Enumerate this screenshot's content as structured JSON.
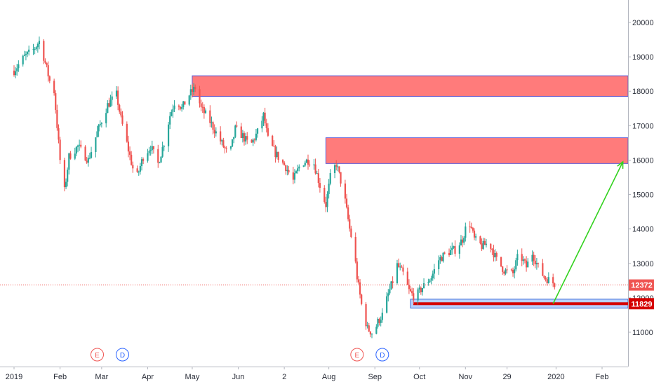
{
  "chart_data": {
    "type": "candlestick",
    "y_axis": {
      "position": "right",
      "range": [
        10000,
        20600
      ],
      "ticks": [
        11000,
        12000,
        13000,
        14000,
        15000,
        16000,
        17000,
        18000,
        19000,
        20000
      ],
      "tick_labels": [
        "11000",
        "12000",
        "13000",
        "14000",
        "15000",
        "16000",
        "17000",
        "18000",
        "19000",
        "20000"
      ]
    },
    "x_axis": {
      "range": [
        "2018-12-26",
        "2020-02-25"
      ],
      "ticks": [
        {
          "date": "2019-01-01",
          "label": "2019"
        },
        {
          "date": "2019-02-01",
          "label": "Feb"
        },
        {
          "date": "2019-03-01",
          "label": "Mar"
        },
        {
          "date": "2019-04-01",
          "label": "Apr"
        },
        {
          "date": "2019-05-01",
          "label": "May"
        },
        {
          "date": "2019-06-01",
          "label": "Jun"
        },
        {
          "date": "2019-07-02",
          "label": "2"
        },
        {
          "date": "2019-08-01",
          "label": "Aug"
        },
        {
          "date": "2019-09-01",
          "label": "Sep"
        },
        {
          "date": "2019-10-01",
          "label": "Oct"
        },
        {
          "date": "2019-11-01",
          "label": "Nov"
        },
        {
          "date": "2019-11-29",
          "label": "29"
        },
        {
          "date": "2020-01-01",
          "label": "2020"
        },
        {
          "date": "2020-02-01",
          "label": "Feb"
        }
      ]
    },
    "grid": false,
    "colors": {
      "up": "#26a69a",
      "down": "#ef5350",
      "zone_fill": "#ff7b7b",
      "zone_border": "#5b5bd6",
      "support_fill": "#b8d1ff",
      "support_line": "#d50000",
      "arrow": "#32d21e",
      "price_line": "#ef5350"
    },
    "price_series": [
      [
        "2019-01-01",
        18600
      ],
      [
        "2019-01-08",
        19000
      ],
      [
        "2019-01-14",
        19200
      ],
      [
        "2019-01-18",
        19450
      ],
      [
        "2019-01-21",
        19000
      ],
      [
        "2019-01-25",
        18300
      ],
      [
        "2019-01-28",
        18000
      ],
      [
        "2019-02-01",
        16000
      ],
      [
        "2019-02-04",
        15100
      ],
      [
        "2019-02-07",
        16100
      ],
      [
        "2019-02-13",
        16400
      ],
      [
        "2019-02-20",
        16000
      ],
      [
        "2019-02-26",
        16800
      ],
      [
        "2019-03-05",
        17600
      ],
      [
        "2019-03-11",
        17900
      ],
      [
        "2019-03-14",
        17200
      ],
      [
        "2019-03-19",
        16300
      ],
      [
        "2019-03-24",
        15400
      ],
      [
        "2019-03-29",
        16100
      ],
      [
        "2019-04-03",
        16400
      ],
      [
        "2019-04-08",
        15900
      ],
      [
        "2019-04-12",
        16500
      ],
      [
        "2019-04-16",
        17300
      ],
      [
        "2019-04-20",
        17800
      ],
      [
        "2019-04-24",
        17500
      ],
      [
        "2019-04-29",
        17900
      ],
      [
        "2019-05-03",
        18100
      ],
      [
        "2019-05-07",
        17500
      ],
      [
        "2019-05-12",
        17200
      ],
      [
        "2019-05-17",
        16800
      ],
      [
        "2019-05-22",
        16400
      ],
      [
        "2019-05-26",
        16100
      ],
      [
        "2019-05-30",
        16900
      ],
      [
        "2019-06-04",
        16700
      ],
      [
        "2019-06-09",
        16400
      ],
      [
        "2019-06-15",
        16900
      ],
      [
        "2019-06-18",
        17300
      ],
      [
        "2019-06-21",
        16600
      ],
      [
        "2019-06-26",
        16200
      ],
      [
        "2019-07-03",
        15800
      ],
      [
        "2019-07-08",
        15400
      ],
      [
        "2019-07-13",
        15900
      ],
      [
        "2019-07-18",
        16000
      ],
      [
        "2019-07-22",
        15900
      ],
      [
        "2019-07-27",
        15100
      ],
      [
        "2019-07-30",
        14700
      ],
      [
        "2019-08-02",
        15500
      ],
      [
        "2019-08-06",
        15900
      ],
      [
        "2019-08-09",
        15400
      ],
      [
        "2019-08-12",
        14800
      ],
      [
        "2019-08-15",
        14000
      ],
      [
        "2019-08-18",
        13400
      ],
      [
        "2019-08-20",
        12600
      ],
      [
        "2019-08-23",
        11800
      ],
      [
        "2019-08-27",
        11100
      ],
      [
        "2019-08-31",
        10950
      ],
      [
        "2019-09-03",
        11300
      ],
      [
        "2019-09-06",
        11500
      ],
      [
        "2019-09-10",
        12100
      ],
      [
        "2019-09-14",
        12600
      ],
      [
        "2019-09-16",
        12950
      ],
      [
        "2019-09-20",
        12700
      ],
      [
        "2019-09-24",
        12200
      ],
      [
        "2019-09-28",
        12000
      ],
      [
        "2019-10-03",
        12300
      ],
      [
        "2019-10-09",
        12600
      ],
      [
        "2019-10-14",
        13100
      ],
      [
        "2019-10-19",
        13300
      ],
      [
        "2019-10-25",
        13400
      ],
      [
        "2019-10-30",
        13700
      ],
      [
        "2019-11-03",
        14300
      ],
      [
        "2019-11-07",
        13700
      ],
      [
        "2019-11-12",
        13500
      ],
      [
        "2019-11-17",
        13600
      ],
      [
        "2019-11-22",
        13100
      ],
      [
        "2019-11-27",
        12800
      ],
      [
        "2019-12-03",
        12700
      ],
      [
        "2019-12-07",
        13300
      ],
      [
        "2019-12-12",
        12900
      ],
      [
        "2019-12-16",
        13300
      ],
      [
        "2019-12-20",
        12900
      ],
      [
        "2019-12-24",
        12600
      ],
      [
        "2019-12-28",
        12500
      ],
      [
        "2020-01-01",
        12372
      ]
    ],
    "resistance_zones": [
      {
        "start": "2019-05-01",
        "end": "2020-02-25",
        "low": 17850,
        "high": 18450
      },
      {
        "start": "2019-07-30",
        "end": "2020-02-25",
        "low": 15900,
        "high": 16650
      }
    ],
    "support_zone": {
      "start": "2019-09-25",
      "end": "2020-02-25",
      "low": 11700,
      "high": 11960,
      "level": 11829
    },
    "projection_arrow": {
      "from": [
        "2019-12-30",
        11829
      ],
      "to": [
        "2020-02-15",
        15950
      ]
    },
    "current_price_line": 12372,
    "price_labels": [
      {
        "value": 12372,
        "text": "12372",
        "color": "#ef5350"
      },
      {
        "value": 11829,
        "text": "11829",
        "color": "#d50000"
      }
    ],
    "events": [
      {
        "date": "2019-02-26",
        "text": "E",
        "color": "#ef5350"
      },
      {
        "date": "2019-03-15",
        "text": "D",
        "color": "#2962ff"
      },
      {
        "date": "2019-08-20",
        "text": "E",
        "color": "#ef5350"
      },
      {
        "date": "2019-09-06",
        "text": "D",
        "color": "#2962ff"
      }
    ]
  }
}
